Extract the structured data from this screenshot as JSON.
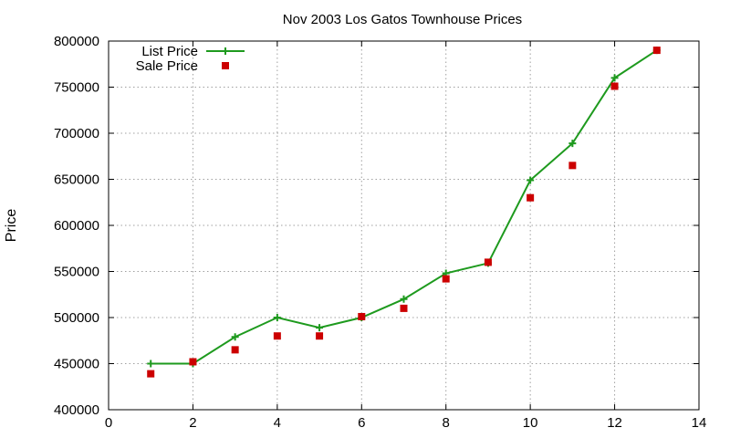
{
  "chart_data": {
    "type": "line",
    "title": "Nov 2003 Los Gatos Townhouse Prices",
    "xlabel": "",
    "ylabel": "Price",
    "xlim": [
      0,
      14
    ],
    "ylim": [
      400000,
      800000
    ],
    "x_ticks": [
      0,
      2,
      4,
      6,
      8,
      10,
      12,
      14
    ],
    "y_ticks": [
      400000,
      450000,
      500000,
      550000,
      600000,
      650000,
      700000,
      750000,
      800000
    ],
    "grid": true,
    "legend_position": "top-left",
    "series": [
      {
        "name": "List Price",
        "style": "line-with-plus-markers",
        "color": "#1e9a1e",
        "x": [
          1,
          2,
          3,
          4,
          5,
          6,
          7,
          8,
          9,
          10,
          11,
          12,
          13
        ],
        "y": [
          450000,
          450000,
          479000,
          500000,
          489000,
          500000,
          520000,
          548000,
          559000,
          649000,
          689000,
          760000,
          790000
        ]
      },
      {
        "name": "Sale Price",
        "style": "square-markers",
        "color": "#cc0000",
        "x": [
          1,
          2,
          3,
          4,
          5,
          6,
          7,
          8,
          9,
          10,
          11,
          12,
          13
        ],
        "y": [
          439000,
          452000,
          465000,
          480000,
          480000,
          501000,
          510000,
          542000,
          560000,
          630000,
          665000,
          751000,
          790000
        ]
      }
    ]
  }
}
